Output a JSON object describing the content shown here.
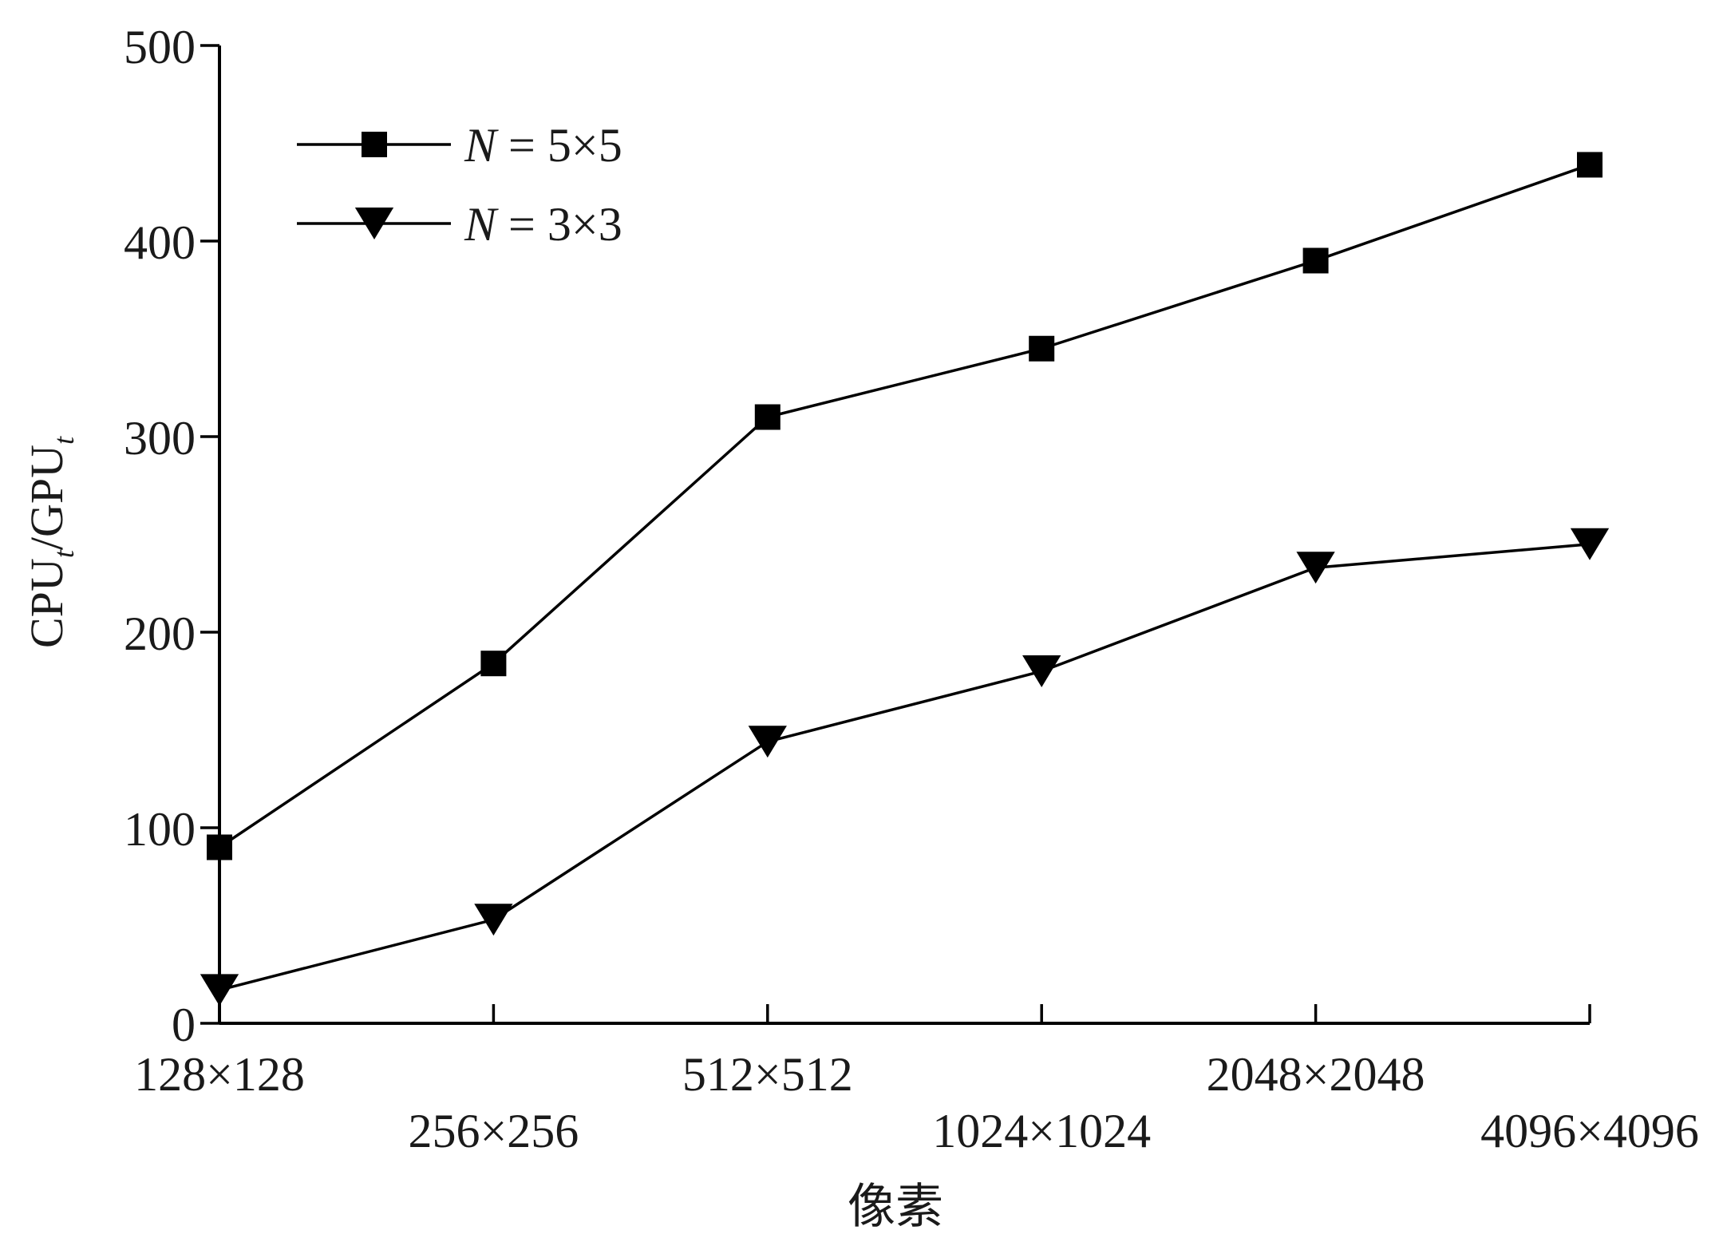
{
  "chart_data": {
    "type": "line",
    "xlabel": "像素",
    "ylabel_main": "CPU",
    "ylabel_sub": "t",
    "ylabel_sep": "/GPU",
    "ylabel_sub2": "t",
    "categories": [
      "128×128",
      "256×256",
      "512×512",
      "1024×1024",
      "2048×2048",
      "4096×4096"
    ],
    "ylim": [
      0,
      500
    ],
    "yticks": [
      "0",
      "100",
      "200",
      "300",
      "400",
      "500"
    ],
    "yticks_values": [
      0,
      100,
      200,
      300,
      400,
      500
    ],
    "grid": false,
    "legend_position": "top-left",
    "series": [
      {
        "name": "N = 5×5",
        "legend_var": "N",
        "legend_rest": " = 5×5",
        "marker": "square",
        "values": [
          90,
          184,
          310,
          345,
          390,
          439
        ]
      },
      {
        "name": "N = 3×3",
        "legend_var": "N",
        "legend_rest": " = 3×3",
        "marker": "triangle-down",
        "values": [
          17,
          53,
          144,
          180,
          233,
          245
        ]
      }
    ]
  }
}
